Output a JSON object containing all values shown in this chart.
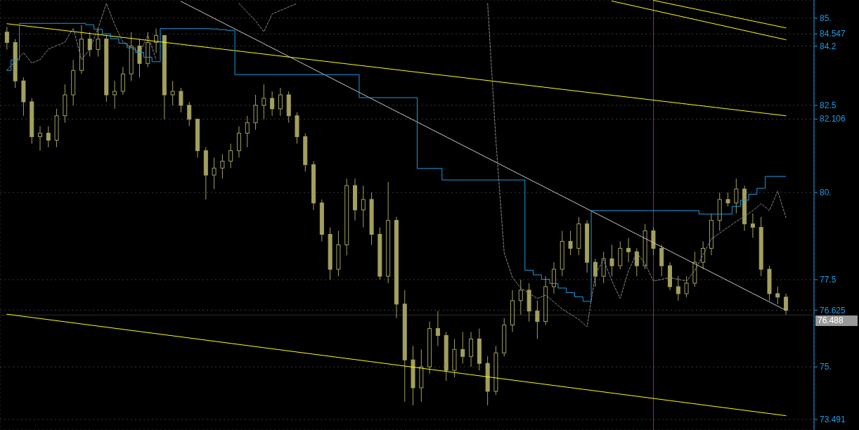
{
  "chart_data": {
    "type": "candlestick",
    "color": "#a3a05e",
    "grid": true,
    "tick_labels": "y",
    "categories": [
      null,
      null,
      null,
      null,
      null,
      null,
      null,
      null,
      null,
      null,
      null,
      null,
      null,
      null,
      null,
      null,
      null,
      null,
      null,
      null,
      null,
      null,
      null,
      null,
      null,
      null,
      null,
      null,
      null,
      null,
      null,
      null,
      null,
      null,
      null,
      null,
      null,
      null,
      null,
      null,
      null,
      null,
      null,
      null,
      null,
      null,
      null,
      null,
      null,
      null,
      null,
      null,
      null,
      null,
      null,
      null,
      null,
      null,
      null,
      null,
      null,
      null,
      null,
      null,
      null,
      null,
      null,
      null,
      null,
      null,
      null,
      null,
      null,
      null,
      null,
      null,
      null,
      null,
      null,
      null,
      null,
      null,
      null,
      null,
      null,
      null,
      null,
      null,
      null,
      null,
      null,
      null,
      null,
      null,
      null
    ],
    "ylim": [
      73.19,
      85.52
    ],
    "yticks": [
      {
        "value": 73.491,
        "label": "73.491"
      },
      {
        "value": 75,
        "label": "75."
      },
      {
        "value": 76.625,
        "label": "76.625"
      },
      {
        "value": 77.5,
        "label": "77.5"
      },
      {
        "value": 80,
        "label": "80."
      },
      {
        "value": 82.106,
        "label": "82.106"
      },
      {
        "value": 82.5,
        "label": "82.5"
      },
      {
        "value": 84.2,
        "label": "84.2"
      },
      {
        "value": 84.547,
        "label": "84.547"
      },
      {
        "value": 85,
        "label": "85."
      }
    ],
    "ohlc": [
      [
        84.6,
        84.75,
        84.1,
        84.3
      ],
      [
        84.3,
        84.4,
        83.0,
        83.2
      ],
      [
        83.2,
        83.3,
        82.2,
        82.6
      ],
      [
        82.6,
        82.7,
        81.4,
        81.6
      ],
      [
        81.6,
        81.9,
        81.2,
        81.7
      ],
      [
        81.7,
        81.9,
        81.3,
        81.5
      ],
      [
        81.5,
        82.4,
        81.3,
        82.2
      ],
      [
        82.2,
        83.1,
        82.0,
        82.8
      ],
      [
        82.8,
        83.8,
        82.5,
        83.5
      ],
      [
        83.5,
        84.8,
        83.4,
        84.4
      ],
      [
        84.4,
        84.6,
        83.9,
        84.1
      ],
      [
        84.1,
        84.7,
        83.9,
        84.4
      ],
      [
        84.4,
        84.5,
        82.6,
        82.8
      ],
      [
        82.8,
        83.2,
        82.4,
        82.9
      ],
      [
        82.9,
        83.6,
        82.8,
        83.4
      ],
      [
        83.4,
        84.6,
        83.2,
        84.2
      ],
      [
        84.2,
        84.4,
        83.3,
        83.7
      ],
      [
        83.7,
        84.6,
        83.6,
        84.3
      ],
      [
        84.3,
        84.7,
        84.0,
        84.5
      ],
      [
        84.5,
        84.5,
        82.1,
        82.8
      ],
      [
        82.8,
        83.2,
        82.5,
        82.9
      ],
      [
        82.9,
        83.0,
        82.3,
        82.5
      ],
      [
        82.5,
        82.6,
        81.9,
        82.1
      ],
      [
        82.1,
        82.1,
        81.0,
        81.2
      ],
      [
        81.2,
        81.3,
        79.8,
        80.5
      ],
      [
        80.5,
        81.0,
        80.1,
        80.7
      ],
      [
        80.7,
        81.1,
        80.4,
        80.9
      ],
      [
        80.9,
        81.4,
        80.7,
        81.2
      ],
      [
        81.2,
        81.9,
        81.0,
        81.7
      ],
      [
        81.7,
        82.2,
        81.3,
        82.0
      ],
      [
        82.0,
        82.8,
        81.8,
        82.5
      ],
      [
        82.5,
        83.1,
        82.1,
        82.7
      ],
      [
        82.7,
        82.9,
        82.2,
        82.4
      ],
      [
        82.4,
        83.0,
        82.2,
        82.8
      ],
      [
        82.8,
        82.9,
        82.0,
        82.2
      ],
      [
        82.2,
        82.3,
        81.4,
        81.6
      ],
      [
        81.6,
        81.7,
        80.6,
        80.8
      ],
      [
        80.8,
        80.9,
        79.5,
        79.7
      ],
      [
        79.7,
        79.8,
        78.6,
        78.8
      ],
      [
        78.8,
        79.0,
        77.5,
        77.8
      ],
      [
        77.8,
        78.9,
        77.6,
        78.5
      ],
      [
        78.5,
        80.4,
        78.2,
        80.2
      ],
      [
        80.2,
        80.4,
        79.2,
        79.5
      ],
      [
        79.5,
        80.2,
        79.0,
        79.8
      ],
      [
        79.8,
        80.0,
        78.5,
        78.8
      ],
      [
        78.8,
        79.0,
        77.5,
        77.6
      ],
      [
        77.6,
        80.3,
        77.4,
        79.2
      ],
      [
        79.2,
        79.3,
        76.4,
        76.8
      ],
      [
        76.8,
        77.2,
        74.0,
        75.2
      ],
      [
        75.2,
        75.6,
        73.9,
        74.4
      ],
      [
        74.4,
        75.5,
        74.0,
        75.0
      ],
      [
        75.0,
        76.3,
        74.8,
        76.1
      ],
      [
        76.1,
        76.6,
        75.6,
        75.9
      ],
      [
        75.9,
        76.0,
        74.6,
        74.9
      ],
      [
        74.9,
        75.8,
        74.7,
        75.5
      ],
      [
        75.5,
        76.0,
        75.1,
        75.3
      ],
      [
        75.3,
        76.0,
        75.0,
        75.8
      ],
      [
        75.8,
        76.1,
        74.9,
        75.1
      ],
      [
        75.1,
        75.3,
        73.9,
        74.3
      ],
      [
        74.3,
        75.6,
        74.2,
        75.4
      ],
      [
        75.4,
        76.4,
        75.3,
        76.2
      ],
      [
        76.2,
        77.2,
        76.0,
        76.9
      ],
      [
        76.9,
        77.5,
        76.5,
        77.2
      ],
      [
        77.2,
        77.4,
        76.3,
        76.6
      ],
      [
        76.6,
        76.9,
        75.8,
        76.3
      ],
      [
        76.3,
        77.6,
        76.2,
        77.3
      ],
      [
        77.3,
        78.0,
        77.1,
        77.8
      ],
      [
        77.8,
        78.9,
        77.6,
        78.6
      ],
      [
        78.6,
        78.9,
        78.2,
        78.4
      ],
      [
        78.4,
        79.3,
        78.2,
        79.1
      ],
      [
        79.1,
        79.2,
        77.7,
        78.0
      ],
      [
        78.0,
        78.1,
        77.3,
        77.6
      ],
      [
        77.6,
        78.3,
        77.4,
        78.1
      ],
      [
        78.1,
        78.5,
        77.6,
        77.9
      ],
      [
        77.9,
        78.6,
        77.8,
        78.4
      ],
      [
        78.4,
        78.7,
        78.0,
        78.3
      ],
      [
        78.3,
        78.4,
        77.6,
        77.9
      ],
      [
        77.9,
        79.1,
        77.8,
        78.9
      ],
      [
        78.9,
        79.0,
        78.2,
        78.4
      ],
      [
        78.4,
        78.5,
        77.6,
        77.9
      ],
      [
        77.9,
        78.0,
        77.2,
        77.3
      ],
      [
        77.3,
        77.6,
        76.9,
        77.1
      ],
      [
        77.1,
        77.6,
        77.0,
        77.4
      ],
      [
        77.4,
        78.3,
        77.3,
        78.0
      ],
      [
        78.0,
        78.6,
        77.8,
        78.4
      ],
      [
        78.4,
        79.4,
        78.2,
        79.2
      ],
      [
        79.2,
        80.0,
        78.9,
        79.8
      ],
      [
        79.8,
        80.0,
        79.6,
        79.7
      ],
      [
        79.7,
        80.4,
        79.4,
        80.1
      ],
      [
        80.1,
        80.2,
        78.9,
        79.1
      ],
      [
        79.1,
        79.4,
        78.7,
        79.0
      ],
      [
        79.0,
        79.3,
        77.6,
        77.8
      ],
      [
        77.8,
        77.9,
        76.9,
        77.1
      ],
      [
        77.1,
        77.3,
        76.8,
        77.0
      ],
      [
        77.0,
        77.1,
        76.5,
        76.625
      ]
    ],
    "series": [
      {
        "type": "line",
        "color": "#ffff00",
        "values": [
          84.84,
          null,
          null,
          null,
          null,
          null,
          null,
          null,
          null,
          null,
          null,
          null,
          null,
          null,
          null,
          null,
          null,
          null,
          null,
          null,
          null,
          null,
          null,
          null,
          null,
          null,
          null,
          null,
          null,
          null,
          null,
          null,
          null,
          null,
          null,
          null,
          null,
          null,
          null,
          null,
          null,
          null,
          null,
          null,
          null,
          null,
          null,
          null,
          null,
          null,
          null,
          null,
          null,
          null,
          null,
          null,
          null,
          null,
          null,
          null,
          null,
          null,
          null,
          null,
          null,
          null,
          null,
          null,
          null,
          null,
          null,
          null,
          null,
          null,
          null,
          null,
          null,
          null,
          null,
          null,
          null,
          null,
          null,
          null,
          null,
          null,
          null,
          null,
          null,
          null,
          null,
          null,
          null,
          null,
          82.2
        ]
      },
      {
        "type": "line",
        "color": "#ffff00",
        "values": [
          null,
          null,
          null,
          null,
          null,
          null,
          null,
          null,
          null,
          null,
          null,
          null,
          null,
          null,
          null,
          null,
          null,
          null,
          null,
          null,
          null,
          null,
          null,
          null,
          null,
          null,
          null,
          null,
          null,
          null,
          null,
          null,
          null,
          null,
          null,
          null,
          null,
          null,
          null,
          null,
          null,
          null,
          null,
          null,
          null,
          null,
          null,
          null,
          null,
          null,
          null,
          null,
          null,
          null,
          null,
          null,
          null,
          null,
          null,
          null,
          null,
          null,
          null,
          null,
          null,
          null,
          null,
          null,
          null,
          null,
          null,
          null,
          null,
          85.49,
          null,
          null,
          null,
          null,
          null,
          null,
          null,
          null,
          null,
          null,
          null,
          null,
          null,
          null,
          null,
          null,
          null,
          null,
          null,
          null,
          84.38
        ]
      },
      {
        "type": "line",
        "color": "#ffff00",
        "values": [
          null,
          null,
          null,
          null,
          null,
          null,
          null,
          null,
          null,
          null,
          null,
          null,
          null,
          null,
          null,
          null,
          null,
          null,
          null,
          null,
          null,
          null,
          null,
          null,
          null,
          null,
          null,
          null,
          null,
          null,
          null,
          null,
          null,
          null,
          null,
          null,
          null,
          null,
          null,
          null,
          null,
          null,
          null,
          null,
          null,
          null,
          null,
          null,
          null,
          null,
          null,
          null,
          null,
          null,
          null,
          null,
          null,
          null,
          null,
          null,
          null,
          null,
          null,
          null,
          null,
          null,
          null,
          null,
          null,
          null,
          null,
          null,
          null,
          null,
          null,
          null,
          null,
          null,
          85.51,
          null,
          null,
          null,
          null,
          null,
          null,
          null,
          null,
          null,
          null,
          null,
          null,
          null,
          null,
          null,
          84.72
        ]
      },
      {
        "type": "line",
        "color": "#ffff00",
        "values": [
          76.51,
          null,
          null,
          null,
          null,
          null,
          null,
          null,
          null,
          null,
          null,
          null,
          null,
          null,
          null,
          null,
          null,
          null,
          null,
          null,
          null,
          null,
          null,
          null,
          null,
          null,
          null,
          null,
          null,
          null,
          null,
          null,
          null,
          null,
          null,
          null,
          null,
          null,
          null,
          null,
          null,
          null,
          null,
          null,
          null,
          null,
          null,
          null,
          null,
          null,
          null,
          null,
          null,
          null,
          null,
          null,
          null,
          null,
          null,
          null,
          null,
          null,
          null,
          null,
          null,
          null,
          null,
          null,
          null,
          null,
          null,
          null,
          null,
          null,
          null,
          null,
          null,
          null,
          null,
          null,
          null,
          null,
          null,
          null,
          null,
          null,
          null,
          null,
          null,
          null,
          null,
          null,
          null,
          null,
          73.6
        ]
      },
      {
        "type": "line",
        "color": "#c8c8c8",
        "values": [
          null,
          null,
          null,
          null,
          null,
          null,
          null,
          null,
          null,
          null,
          null,
          null,
          null,
          null,
          null,
          null,
          null,
          null,
          null,
          null,
          null,
          85.48,
          null,
          null,
          null,
          null,
          null,
          null,
          null,
          null,
          null,
          null,
          null,
          null,
          null,
          null,
          null,
          null,
          null,
          null,
          null,
          null,
          null,
          null,
          null,
          null,
          null,
          null,
          null,
          null,
          null,
          null,
          null,
          null,
          null,
          null,
          null,
          null,
          null,
          null,
          null,
          null,
          null,
          null,
          null,
          null,
          null,
          null,
          null,
          null,
          null,
          null,
          null,
          null,
          null,
          null,
          null,
          null,
          null,
          null,
          null,
          null,
          null,
          null,
          null,
          null,
          null,
          null,
          null,
          null,
          null,
          null,
          null,
          null,
          76.62
        ]
      },
      {
        "type": "step",
        "color": "#1e9be0",
        "values": [
          83.5,
          83.8,
          84.85,
          84.85,
          84.85,
          84.85,
          84.85,
          84.85,
          84.85,
          84.85,
          84.81,
          84.68,
          84.55,
          84.41,
          84.28,
          84.15,
          84.02,
          83.88,
          83.75,
          84.7,
          84.7,
          84.7,
          84.7,
          84.7,
          84.7,
          84.69,
          84.67,
          84.65,
          83.38,
          83.38,
          83.38,
          83.38,
          83.38,
          83.38,
          83.38,
          83.38,
          83.38,
          83.38,
          83.38,
          83.38,
          83.38,
          83.38,
          83.38,
          82.72,
          82.72,
          82.72,
          82.72,
          82.72,
          82.72,
          82.72,
          80.69,
          80.69,
          80.69,
          80.36,
          80.36,
          80.36,
          80.36,
          80.36,
          80.36,
          80.36,
          80.36,
          80.36,
          80.36,
          77.77,
          77.64,
          77.51,
          77.39,
          77.26,
          77.13,
          77.01,
          76.88,
          79.48,
          79.48,
          79.48,
          79.48,
          79.48,
          79.48,
          79.48,
          79.48,
          79.48,
          79.48,
          79.48,
          79.48,
          79.48,
          79.38,
          79.38,
          79.38,
          79.38,
          79.6,
          79.78,
          79.95,
          80.12,
          80.46,
          80.46,
          80.46
        ]
      },
      {
        "type": "line",
        "color": "#8a8a8a",
        "line_style": "dashed",
        "values": [
          83.51,
          null,
          84.01,
          83.71,
          83.81,
          84.11,
          null,
          84.31,
          84.71,
          83.81,
          84.11,
          84.71,
          85.42,
          84.81,
          84.31,
          null,
          84.01,
          84.51,
          83.81,
          null,
          null,
          null,
          null,
          null,
          null,
          null,
          null,
          null,
          null,
          null,
          null,
          null,
          null,
          null,
          null,
          null,
          null,
          null,
          null,
          null,
          null,
          null,
          null,
          null,
          null,
          null,
          null,
          null,
          null,
          null,
          null,
          null,
          null,
          null,
          null,
          null,
          null,
          null,
          null,
          null,
          null,
          null,
          null,
          null,
          null,
          null,
          null,
          null,
          null,
          null,
          null,
          null,
          null,
          null,
          null,
          null,
          null,
          null,
          null,
          null,
          null,
          null,
          null,
          null,
          null,
          null,
          null,
          null,
          null,
          null,
          null,
          null,
          null,
          null,
          null
        ]
      },
      {
        "type": "line",
        "color": "#8a8a8a",
        "line_style": "dashed",
        "values": [
          null,
          null,
          null,
          null,
          null,
          null,
          null,
          null,
          null,
          null,
          null,
          null,
          null,
          null,
          null,
          null,
          null,
          null,
          null,
          null,
          null,
          null,
          null,
          null,
          null,
          null,
          null,
          null,
          85.42,
          null,
          84.92,
          84.61,
          85.12,
          null,
          85.32,
          85.42,
          null,
          null,
          null,
          null,
          null,
          null,
          null,
          null,
          null,
          null,
          null,
          null,
          null,
          null,
          null,
          null,
          null,
          null,
          null,
          null,
          null,
          null,
          null,
          null,
          null,
          null,
          null,
          null,
          null,
          null,
          null,
          null,
          null,
          null,
          null,
          null,
          null,
          null,
          null,
          null,
          null,
          null,
          null,
          null,
          null,
          null,
          null,
          null,
          null,
          null,
          null,
          null,
          null,
          null,
          null,
          null,
          null,
          null,
          null
        ]
      },
      {
        "type": "line",
        "color": "#8a8a8a",
        "line_style": "dashed",
        "values": [
          null,
          null,
          null,
          null,
          null,
          null,
          null,
          null,
          null,
          null,
          null,
          null,
          null,
          null,
          null,
          null,
          null,
          null,
          null,
          null,
          null,
          null,
          null,
          null,
          null,
          null,
          null,
          null,
          null,
          null,
          null,
          null,
          null,
          null,
          null,
          null,
          null,
          null,
          null,
          null,
          null,
          null,
          null,
          null,
          null,
          null,
          null,
          null,
          null,
          null,
          null,
          null,
          null,
          null,
          null,
          null,
          null,
          null,
          85.42,
          81.49,
          78.27,
          77.56,
          77.26,
          null,
          76.96,
          77.06,
          null,
          76.66,
          null,
          76.36,
          76.15,
          77.66,
          78.07,
          77.46,
          76.96,
          77.76,
          78.27,
          77.96,
          77.46,
          null,
          77.56,
          null,
          77.46,
          77.76,
          null,
          78.67,
          null,
          null,
          79.17,
          null,
          79.48,
          79.68,
          79.48,
          80.04,
          79.28
        ]
      }
    ],
    "ref_lines": [
      {
        "axis": "y",
        "value": 76.488,
        "label": "76.488",
        "color": "#9a9a9a"
      }
    ]
  }
}
